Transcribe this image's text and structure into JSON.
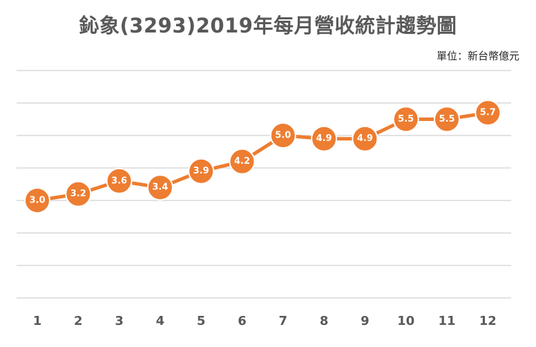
{
  "chart_data": {
    "type": "line",
    "title": "鈊象(3293)2019年每月營收統計趨勢圖",
    "unit": "單位：新台幣億元",
    "x": [
      "1",
      "2",
      "3",
      "4",
      "5",
      "6",
      "7",
      "8",
      "9",
      "10",
      "11",
      "12"
    ],
    "series": [
      {
        "values": [
          3.0,
          3.2,
          3.6,
          3.4,
          3.9,
          4.2,
          5.0,
          4.9,
          4.9,
          5.5,
          5.5,
          5.7
        ]
      }
    ],
    "data_labels": [
      "3.0",
      "3.2",
      "3.6",
      "3.4",
      "3.9",
      "4.2",
      "5.0",
      "4.9",
      "4.9",
      "5.5",
      "5.5",
      "5.7"
    ],
    "ylim": [
      0,
      7
    ],
    "grid": true,
    "legend": "none",
    "color": "#ED7D31"
  }
}
